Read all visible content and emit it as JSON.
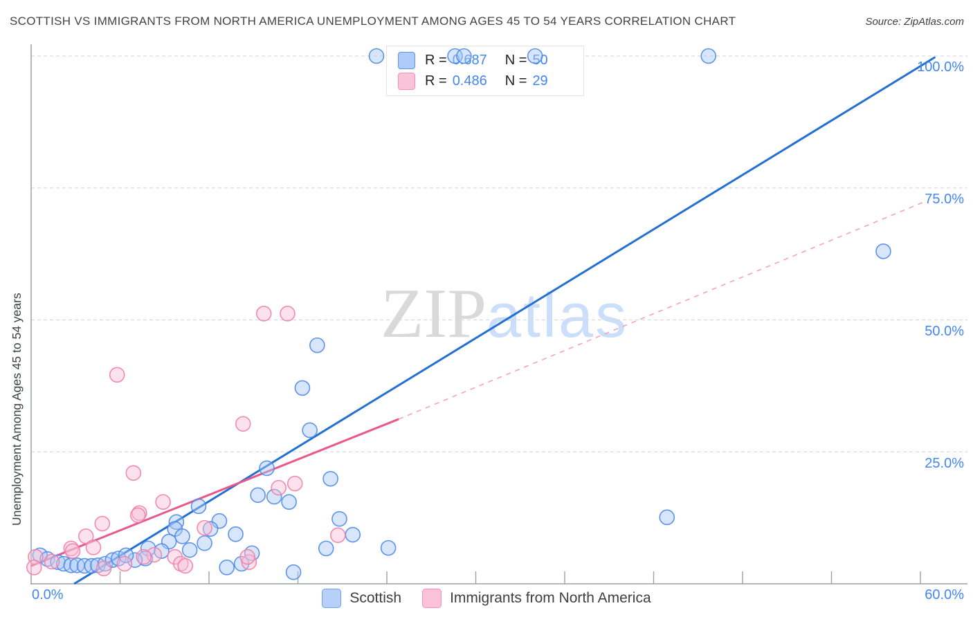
{
  "header": {
    "title": "SCOTTISH VS IMMIGRANTS FROM NORTH AMERICA UNEMPLOYMENT AMONG AGES 45 TO 54 YEARS CORRELATION CHART",
    "source": "Source: ZipAtlas.com"
  },
  "watermark": {
    "zip": "ZIP",
    "atlas": "atlas"
  },
  "legend_box": {
    "rows": [
      {
        "r_label": "R =",
        "r_value": "0.687",
        "n_label": "N =",
        "n_value": "50"
      },
      {
        "r_label": "R =",
        "r_value": "0.486",
        "n_label": "N =",
        "n_value": "29"
      }
    ]
  },
  "axes": {
    "y_title": "Unemployment Among Ages 45 to 54 years",
    "x_min_label": "0.0%",
    "x_max_label": "60.0%",
    "y_tick_labels": [
      "100.0%",
      "75.0%",
      "50.0%",
      "25.0%"
    ]
  },
  "bottom_legend": [
    {
      "label": "Scottish"
    },
    {
      "label": "Immigrants from North America"
    }
  ],
  "colors": {
    "accent_blue": "#4285f4",
    "grid": "#d8dadc",
    "axis": "#9aa0a6",
    "title_text": "#3f4349"
  },
  "chart_data": {
    "type": "scatter",
    "title": "Scottish vs Immigrants from North America Unemployment Among Ages 45 to 54 years",
    "xlabel": "",
    "ylabel": "Unemployment Among Ages 45 to 54 years",
    "x_range_pct": [
      0,
      60
    ],
    "y_range_pct": [
      0,
      100
    ],
    "x_tick_step_pct": 6,
    "y_grid_step_pct": 25,
    "grid": true,
    "legend_position": "bottom",
    "series": [
      {
        "name": "Scottish",
        "r": 0.687,
        "n": 50,
        "color": "#4d87e8",
        "fill": "#a9c7f7",
        "points": [
          [
            23.3,
            100
          ],
          [
            28.6,
            100
          ],
          [
            29.2,
            100
          ],
          [
            34.0,
            100
          ],
          [
            45.7,
            100
          ],
          [
            57.5,
            63.0
          ],
          [
            19.3,
            45.2
          ],
          [
            18.3,
            37.1
          ],
          [
            18.8,
            29.1
          ],
          [
            15.9,
            21.9
          ],
          [
            20.2,
            19.9
          ],
          [
            15.3,
            16.8
          ],
          [
            16.4,
            16.5
          ],
          [
            17.4,
            15.5
          ],
          [
            20.8,
            12.3
          ],
          [
            21.7,
            9.3
          ],
          [
            19.9,
            6.7
          ],
          [
            24.1,
            6.8
          ],
          [
            42.9,
            12.6
          ],
          [
            11.3,
            14.7
          ],
          [
            9.8,
            11.7
          ],
          [
            12.7,
            11.9
          ],
          [
            9.7,
            10.4
          ],
          [
            10.2,
            9.0
          ],
          [
            9.3,
            8.0
          ],
          [
            12.1,
            10.4
          ],
          [
            13.8,
            9.4
          ],
          [
            11.7,
            7.7
          ],
          [
            10.7,
            6.4
          ],
          [
            7.9,
            6.7
          ],
          [
            8.8,
            6.2
          ],
          [
            7.7,
            4.8
          ],
          [
            7.0,
            4.5
          ],
          [
            13.2,
            3.1
          ],
          [
            14.2,
            3.8
          ],
          [
            14.9,
            5.8
          ],
          [
            17.7,
            2.2
          ],
          [
            0.6,
            5.4
          ],
          [
            1.1,
            4.7
          ],
          [
            1.8,
            4.1
          ],
          [
            2.2,
            3.8
          ],
          [
            2.7,
            3.5
          ],
          [
            3.1,
            3.5
          ],
          [
            3.6,
            3.4
          ],
          [
            4.1,
            3.4
          ],
          [
            4.5,
            3.5
          ],
          [
            5.0,
            3.8
          ],
          [
            5.5,
            4.5
          ],
          [
            5.9,
            4.8
          ],
          [
            6.4,
            5.4
          ]
        ],
        "trend": {
          "style": "solid",
          "start": [
            2.9,
            0
          ],
          "end": [
            61.0,
            99.8
          ],
          "color": "#2270d3",
          "width": 3
        }
      },
      {
        "name": "Immigrants from North America",
        "r": 0.486,
        "n": 29,
        "color": "#ef7ea6",
        "fill": "#f7bfd4",
        "points": [
          [
            15.7,
            51.2
          ],
          [
            17.3,
            51.2
          ],
          [
            5.8,
            39.6
          ],
          [
            14.3,
            30.3
          ],
          [
            6.9,
            21.0
          ],
          [
            8.9,
            15.5
          ],
          [
            7.3,
            13.4
          ],
          [
            4.8,
            11.4
          ],
          [
            11.7,
            10.6
          ],
          [
            16.7,
            18.2
          ],
          [
            17.8,
            19.0
          ],
          [
            20.7,
            9.2
          ],
          [
            14.7,
            4.1
          ],
          [
            14.6,
            5.1
          ],
          [
            8.3,
            5.5
          ],
          [
            7.6,
            5.1
          ],
          [
            9.7,
            5.1
          ],
          [
            10.1,
            3.8
          ],
          [
            10.4,
            3.4
          ],
          [
            7.2,
            13.0
          ],
          [
            3.7,
            9.0
          ],
          [
            4.2,
            6.9
          ],
          [
            2.7,
            6.7
          ],
          [
            0.3,
            5.1
          ],
          [
            0.2,
            3.1
          ],
          [
            1.4,
            4.2
          ],
          [
            2.8,
            6.2
          ],
          [
            4.9,
            2.9
          ],
          [
            6.3,
            3.8
          ]
        ],
        "trend": {
          "style": "solid-then-dashed",
          "start": [
            0,
            3.4
          ],
          "solid_end": [
            24.8,
            31.2
          ],
          "end": [
            60.2,
            72.3
          ],
          "color": "#e8578d",
          "dashed_color": "#f2a3bc",
          "width": 3
        }
      }
    ]
  }
}
